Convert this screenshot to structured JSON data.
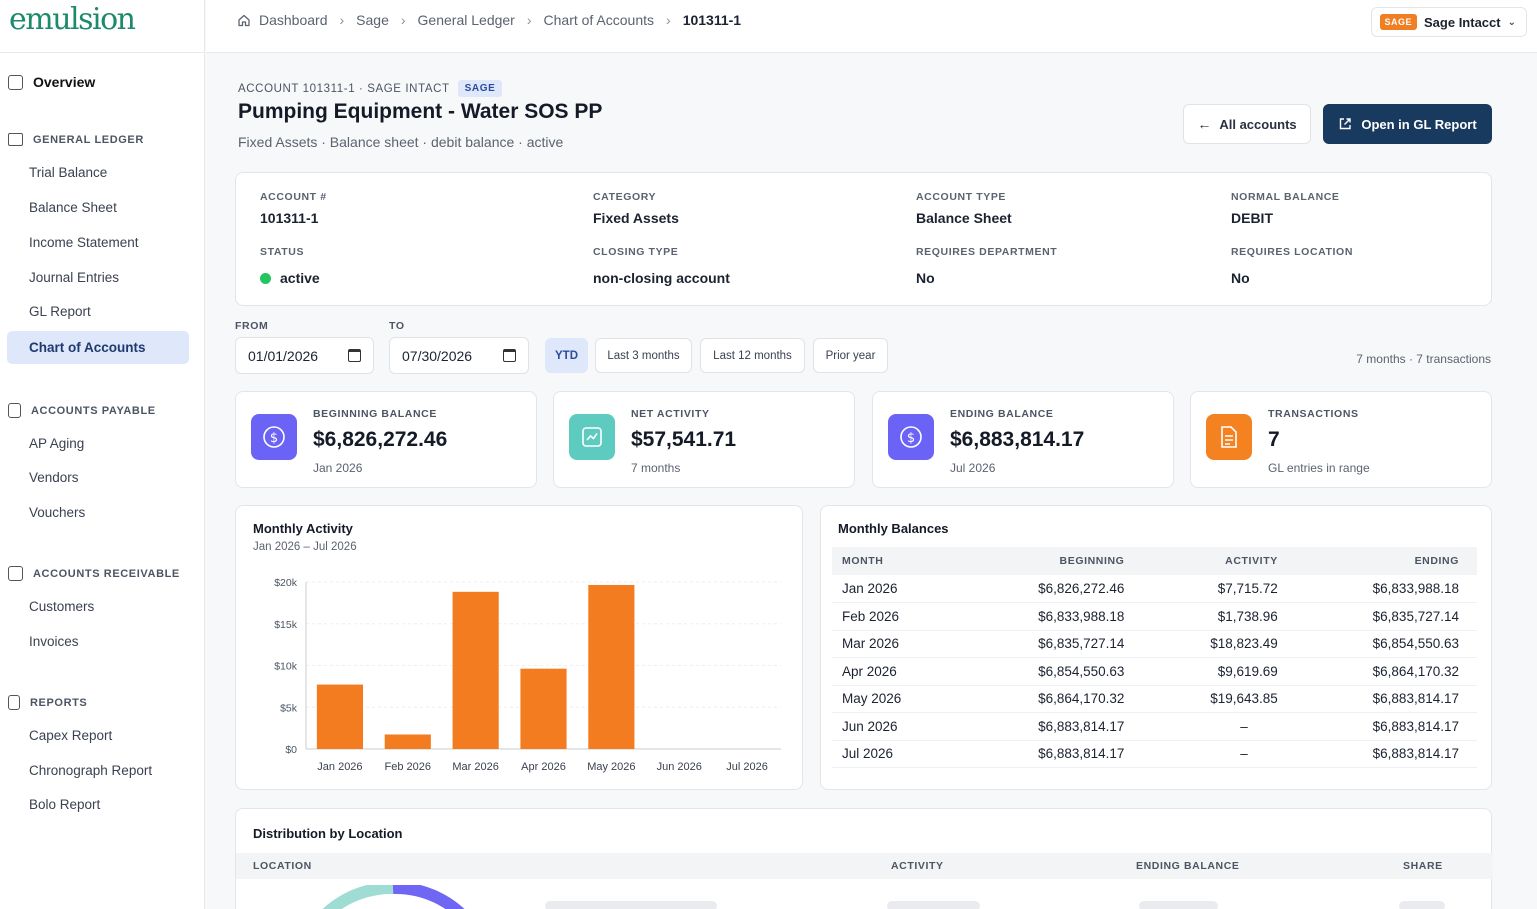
{
  "app": {
    "logo": "emulsion"
  },
  "sidebar": {
    "overview": "Overview",
    "sections": [
      {
        "title": "GENERAL LEDGER",
        "items": [
          "Trial Balance",
          "Balance Sheet",
          "Income Statement",
          "Journal Entries",
          "GL Report",
          "Chart of Accounts"
        ]
      },
      {
        "title": "ACCOUNTS PAYABLE",
        "items": [
          "AP Aging",
          "Vendors",
          "Vouchers"
        ]
      },
      {
        "title": "ACCOUNTS RECEIVABLE",
        "items": [
          "Customers",
          "Invoices"
        ]
      },
      {
        "title": "REPORTS",
        "items": [
          "Capex Report",
          "Chronograph Report",
          "Bolo Report"
        ]
      }
    ],
    "active_item": "Chart of Accounts"
  },
  "header": {
    "breadcrumb": [
      "Dashboard",
      "Sage",
      "General Ledger",
      "Chart of Accounts",
      "101311-1"
    ],
    "connector_tag": "SAGE",
    "connector_label": "Sage Intacct"
  },
  "page": {
    "kicker": "ACCOUNT 101311-1 · SAGE INTACT",
    "kicker_tag": "SAGE",
    "title": "Pumping Equipment - Water SOS PP",
    "subtitle": "Fixed Assets · Balance sheet · debit balance · active",
    "btn_all": "All accounts",
    "btn_gl": "Open in GL Report"
  },
  "details": {
    "account_no_label": "ACCOUNT #",
    "account_no": "101311-1",
    "category_label": "CATEGORY",
    "category": "Fixed Assets",
    "account_type_label": "ACCOUNT TYPE",
    "account_type": "Balance Sheet",
    "normal_balance_label": "NORMAL BALANCE",
    "normal_balance": "DEBIT",
    "status_label": "STATUS",
    "status": "active",
    "closing_type_label": "CLOSING TYPE",
    "closing_type": "non-closing account",
    "req_dept_label": "REQUIRES DEPARTMENT",
    "req_dept": "No",
    "req_loc_label": "REQUIRES LOCATION",
    "req_loc": "No"
  },
  "filters": {
    "from_label": "FROM",
    "from": "01/01/2026",
    "to_label": "TO",
    "to": "07/30/2026",
    "chips": [
      "YTD",
      "Last 3 months",
      "Last 12 months",
      "Prior year"
    ],
    "active_chip": "YTD",
    "range_summary": "7 months · 7 transactions"
  },
  "kpis": [
    {
      "label": "BEGINNING BALANCE",
      "value": "$6,826,272.46",
      "sub": "Jan 2026",
      "icon": "dollar-icon",
      "color": "#6b63f6"
    },
    {
      "label": "NET ACTIVITY",
      "value": "$57,541.71",
      "sub": "7 months",
      "icon": "chart-icon",
      "color": "#5ecbc0"
    },
    {
      "label": "ENDING BALANCE",
      "value": "$6,883,814.17",
      "sub": "Jul 2026",
      "icon": "dollar-icon",
      "color": "#6b63f6"
    },
    {
      "label": "TRANSACTIONS",
      "value": "7",
      "sub": "GL entries in range",
      "icon": "document-icon",
      "color": "#f58220"
    }
  ],
  "activity_chart": {
    "title": "Monthly Activity",
    "subtitle": "Jan 2026 – Jul 2026"
  },
  "chart_data": {
    "type": "bar",
    "categories": [
      "Jan 2026",
      "Feb 2026",
      "Mar 2026",
      "Apr 2026",
      "May 2026",
      "Jun 2026",
      "Jul 2026"
    ],
    "values": [
      7715.72,
      1738.96,
      18823.49,
      9619.69,
      19643.85,
      0,
      0
    ],
    "yticks": [
      "$0",
      "$5k",
      "$10k",
      "$15k",
      "$20k"
    ],
    "ylim": [
      0,
      20000
    ],
    "bar_color": "#f47c20",
    "grid": true
  },
  "balances": {
    "title": "Monthly Balances",
    "headers": [
      "MONTH",
      "BEGINNING",
      "ACTIVITY",
      "ENDING"
    ],
    "rows": [
      [
        "Jan 2026",
        "$6,826,272.46",
        "$7,715.72",
        "$6,833,988.18"
      ],
      [
        "Feb 2026",
        "$6,833,988.18",
        "$1,738.96",
        "$6,835,727.14"
      ],
      [
        "Mar 2026",
        "$6,835,727.14",
        "$18,823.49",
        "$6,854,550.63"
      ],
      [
        "Apr 2026",
        "$6,854,550.63",
        "$9,619.69",
        "$6,864,170.32"
      ],
      [
        "May 2026",
        "$6,864,170.32",
        "$19,643.85",
        "$6,883,814.17"
      ],
      [
        "Jun 2026",
        "$6,883,814.17",
        "–",
        "$6,883,814.17"
      ],
      [
        "Jul 2026",
        "$6,883,814.17",
        "–",
        "$6,883,814.17"
      ]
    ]
  },
  "distribution": {
    "title": "Distribution by Location",
    "headers": [
      "LOCATION",
      "ACTIVITY",
      "ENDING BALANCE",
      "SHARE"
    ]
  }
}
